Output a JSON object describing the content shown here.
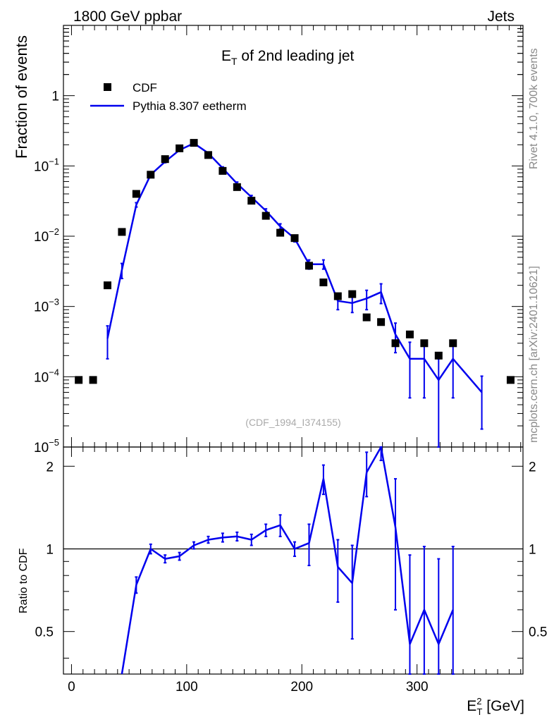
{
  "header": {
    "left": "1800 GeV ppbar",
    "right": "Jets"
  },
  "side_labels": {
    "top": "Rivet 4.1.0,  700k events",
    "bottom": "mcplots.cern.ch [arXiv:2401.10621]"
  },
  "chart_data": {
    "type": "line",
    "title": "E",
    "title_sub": "T",
    "title_rest": " of 2nd leading jet",
    "watermark": "(CDF_1994_I374155)",
    "xlabel": "E",
    "xlabel_sup": "2",
    "xlabel_sub": "T",
    "xlabel_unit": " [GeV]",
    "ylabel": "Fraction of events",
    "ratio_ylabel": "Ratio to CDF",
    "xlim": [
      -7,
      392
    ],
    "ylim": [
      1e-05,
      10
    ],
    "ratio_ylim": [
      0.35,
      2.35
    ],
    "x_ticks": [
      0,
      100,
      200,
      300
    ],
    "x_tick_labels": [
      "0",
      "100",
      "200",
      "300"
    ],
    "y_ticks": [
      1,
      0.1,
      0.01,
      0.001,
      0.0001,
      1e-05
    ],
    "y_tick_labels": [
      {
        "base": "1",
        "exp": ""
      },
      {
        "base": "10",
        "exp": "−1"
      },
      {
        "base": "10",
        "exp": "−2"
      },
      {
        "base": "10",
        "exp": "−3"
      },
      {
        "base": "10",
        "exp": "−4"
      },
      {
        "base": "10",
        "exp": "−5"
      }
    ],
    "ratio_ticks": [
      0.5,
      1,
      2
    ],
    "ratio_tick_labels": [
      "0.5",
      "1",
      "2"
    ],
    "legend": [
      {
        "label": "CDF",
        "color": "#000000",
        "marker": "square"
      },
      {
        "label": "Pythia 8.307 eetherm",
        "color": "#0000ee",
        "marker": "line"
      }
    ],
    "data_color": "#000000",
    "mc_color": "#0000ee",
    "data": {
      "name": "CDF",
      "x": [
        6.25,
        18.75,
        31.25,
        43.75,
        56.25,
        68.75,
        81.25,
        93.75,
        106.25,
        118.75,
        131.25,
        143.75,
        156.25,
        168.75,
        181.25,
        193.75,
        206.25,
        218.75,
        231.25,
        243.75,
        256.25,
        268.75,
        281.25,
        293.75,
        306.25,
        318.75,
        331.25,
        381.25
      ],
      "y": [
        9e-05,
        9e-05,
        0.002,
        0.0115,
        0.04,
        0.075,
        0.125,
        0.178,
        0.213,
        0.143,
        0.085,
        0.05,
        0.032,
        0.0195,
        0.0112,
        0.0094,
        0.0038,
        0.0022,
        0.0014,
        0.0015,
        0.0007,
        0.0006,
        0.0003,
        0.0004,
        0.0003,
        0.0002,
        0.0003,
        9e-05
      ]
    },
    "mc": {
      "name": "Pythia 8.307 eetherm",
      "x": [
        31.25,
        43.75,
        56.25,
        68.75,
        81.25,
        93.75,
        106.25,
        118.75,
        131.25,
        143.75,
        156.25,
        168.75,
        181.25,
        193.75,
        206.25,
        218.75,
        231.25,
        243.75,
        256.25,
        268.75,
        281.25,
        293.75,
        306.25,
        318.75,
        331.25,
        356.25
      ],
      "y": [
        0.00035,
        0.0033,
        0.028,
        0.075,
        0.115,
        0.168,
        0.21,
        0.152,
        0.093,
        0.056,
        0.036,
        0.023,
        0.0138,
        0.0093,
        0.004,
        0.004,
        0.0012,
        0.00112,
        0.0013,
        0.0016,
        0.0004,
        0.00018,
        0.00018,
        9e-05,
        0.00018,
        6e-05
      ],
      "err_lo": [
        0.00017,
        0.0008,
        0.002,
        0.004,
        0.004,
        0.005,
        0.006,
        0.005,
        0.004,
        0.003,
        0.002,
        0.0015,
        0.0012,
        0.001,
        0.0006,
        0.0006,
        0.0003,
        0.0003,
        0.0004,
        0.0005,
        0.00018,
        0.00013,
        0.00013,
        9e-05,
        0.00013,
        4.2e-05
      ],
      "err_hi": [
        0.00018,
        0.0008,
        0.002,
        0.004,
        0.004,
        0.005,
        0.006,
        0.005,
        0.004,
        0.003,
        0.002,
        0.0015,
        0.0012,
        0.001,
        0.0006,
        0.0006,
        0.0003,
        0.0003,
        0.0004,
        0.0005,
        0.00018,
        0.00013,
        0.00013,
        9e-05,
        0.00013,
        4.2e-05
      ]
    },
    "ratio": {
      "x": [
        43.75,
        56.25,
        68.75,
        81.25,
        93.75,
        106.25,
        118.75,
        131.25,
        143.75,
        156.25,
        168.75,
        181.25,
        193.75,
        206.25,
        218.75,
        231.25,
        243.75,
        256.25,
        268.75,
        281.25,
        293.75,
        306.25,
        318.75,
        331.25
      ],
      "y": [
        0.29,
        0.74,
        1.0,
        0.92,
        0.94,
        1.03,
        1.08,
        1.1,
        1.11,
        1.08,
        1.17,
        1.22,
        1.0,
        1.05,
        1.8,
        0.86,
        0.75,
        1.9,
        2.5,
        1.2,
        0.45,
        0.6,
        0.45,
        0.6
      ],
      "err": [
        0.0,
        0.05,
        0.04,
        0.03,
        0.03,
        0.03,
        0.03,
        0.04,
        0.04,
        0.05,
        0.06,
        0.11,
        0.06,
        0.18,
        0.22,
        0.22,
        0.28,
        0.35,
        0.4,
        0.6,
        0.5,
        0.42,
        0.47,
        0.42
      ]
    }
  }
}
